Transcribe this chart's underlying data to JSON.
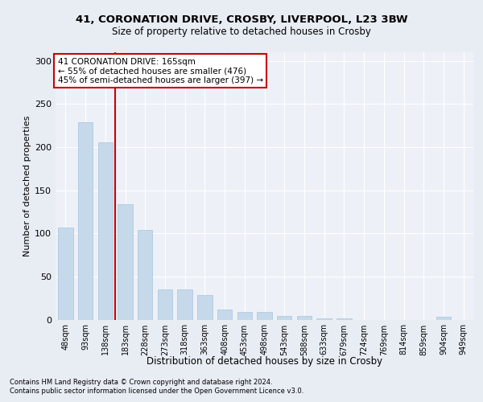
{
  "title1": "41, CORONATION DRIVE, CROSBY, LIVERPOOL, L23 3BW",
  "title2": "Size of property relative to detached houses in Crosby",
  "xlabel": "Distribution of detached houses by size in Crosby",
  "ylabel": "Number of detached properties",
  "categories": [
    "48sqm",
    "93sqm",
    "138sqm",
    "183sqm",
    "228sqm",
    "273sqm",
    "318sqm",
    "363sqm",
    "408sqm",
    "453sqm",
    "498sqm",
    "543sqm",
    "588sqm",
    "633sqm",
    "679sqm",
    "724sqm",
    "769sqm",
    "814sqm",
    "859sqm",
    "904sqm",
    "949sqm"
  ],
  "values": [
    107,
    229,
    206,
    134,
    104,
    35,
    35,
    28,
    12,
    9,
    9,
    4,
    4,
    1,
    1,
    0,
    0,
    0,
    0,
    3,
    0
  ],
  "bar_color": "#c5d9ea",
  "bar_edge_color": "#a8c4dc",
  "vline_color": "#cc0000",
  "annotation_text": "41 CORONATION DRIVE: 165sqm\n← 55% of detached houses are smaller (476)\n45% of semi-detached houses are larger (397) →",
  "annotation_box_color": "#ffffff",
  "annotation_box_edge": "#cc0000",
  "ylim": [
    0,
    310
  ],
  "yticks": [
    0,
    50,
    100,
    150,
    200,
    250,
    300
  ],
  "footer1": "Contains HM Land Registry data © Crown copyright and database right 2024.",
  "footer2": "Contains public sector information licensed under the Open Government Licence v3.0.",
  "bg_color": "#e8edf4",
  "plot_bg_color": "#edf1f7",
  "title1_fontsize": 9.5,
  "title2_fontsize": 8.5,
  "ylabel_fontsize": 8,
  "xlabel_fontsize": 8.5,
  "ytick_fontsize": 8,
  "xtick_fontsize": 7,
  "footer_fontsize": 6.0,
  "annotation_fontsize": 7.5,
  "vline_x_index": 2
}
